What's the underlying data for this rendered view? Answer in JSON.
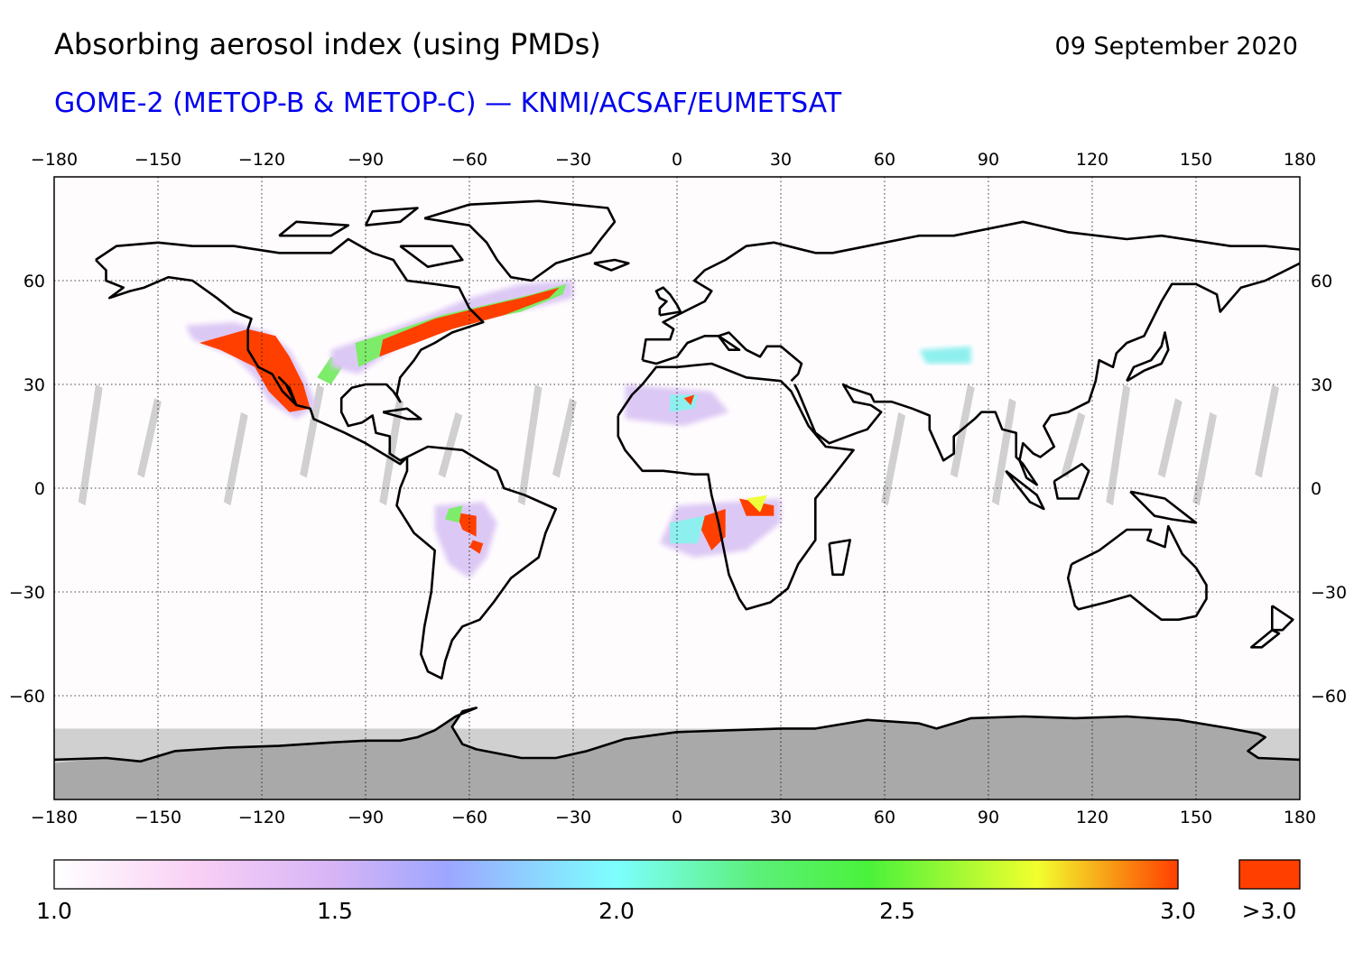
{
  "header": {
    "title": "Absorbing aerosol index (using PMDs)",
    "date": "09 September 2020",
    "subtitle": "GOME-2 (METOP-B & METOP-C) — KNMI/ACSAF/EUMETSAT"
  },
  "map": {
    "projection": "equirectangular",
    "lon_range": [
      -180,
      180
    ],
    "lat_range": [
      -90,
      90
    ],
    "lon_ticks": [
      -180,
      -150,
      -120,
      -90,
      -60,
      -30,
      0,
      30,
      60,
      90,
      120,
      150,
      180
    ],
    "lat_ticks": [
      60,
      30,
      0,
      -30,
      -60
    ],
    "grid": "dotted",
    "no_data_color": "#d0d0d0",
    "polar_color": "#a9a9a9",
    "coastline_color": "#000000",
    "aerosol_regions": [
      {
        "name": "western-north-america-smoke",
        "level": "high"
      },
      {
        "name": "north-atlantic-smoke-plume",
        "level": "high"
      },
      {
        "name": "south-america-fires",
        "level": "high"
      },
      {
        "name": "central-africa-fires",
        "level": "high"
      },
      {
        "name": "sahara-dust",
        "level": "medium"
      }
    ]
  },
  "colorbar": {
    "min": 1.0,
    "max": 3.0,
    "ticks": [
      "1.0",
      "1.5",
      "2.0",
      "2.5",
      "3.0"
    ],
    "overflow_label": ">3.0",
    "overflow_color": "#ff3f00",
    "stops": [
      {
        "v": 1.0,
        "c": "#ffffff"
      },
      {
        "v": 1.25,
        "c": "#f9d0f5"
      },
      {
        "v": 1.5,
        "c": "#d6b4f6"
      },
      {
        "v": 1.7,
        "c": "#9da6ff"
      },
      {
        "v": 2.0,
        "c": "#7dffff"
      },
      {
        "v": 2.25,
        "c": "#5cf07a"
      },
      {
        "v": 2.45,
        "c": "#4af23a"
      },
      {
        "v": 2.75,
        "c": "#f2ff2e"
      },
      {
        "v": 3.0,
        "c": "#ff3f00"
      }
    ]
  }
}
